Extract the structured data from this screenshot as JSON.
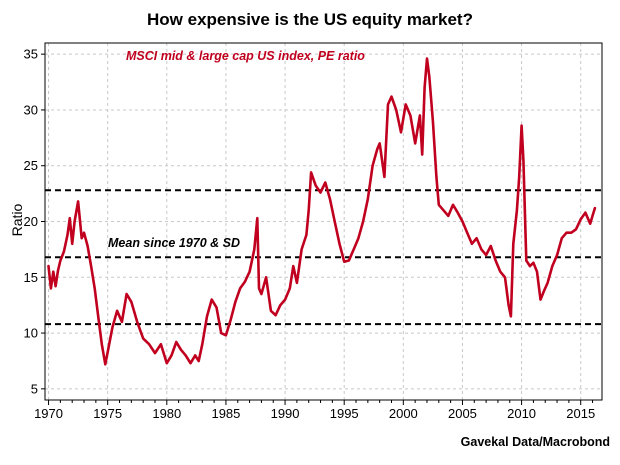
{
  "chart_data": {
    "type": "line",
    "title": "How expensive is the US equity market?",
    "ylabel": "Ratio",
    "xlabel": "",
    "xlim": [
      1969.7,
      2016.8
    ],
    "ylim": [
      4,
      36
    ],
    "xticks": [
      1970,
      1975,
      1980,
      1985,
      1990,
      1995,
      2000,
      2005,
      2010,
      2015
    ],
    "yticks": [
      5,
      10,
      15,
      20,
      25,
      30,
      35
    ],
    "grid": true,
    "series_label": "MSCI mid & large cap US index, PE ratio",
    "mean_label": "Mean since 1970 & SD",
    "source": "Gavekal Data/Macrobond",
    "colors": {
      "series": "#c0001e",
      "reference": "#000000",
      "grid": "#c8c8c8"
    },
    "reference_lines": [
      {
        "role": "mean",
        "y": 16.8
      },
      {
        "role": "mean_plus_sd",
        "y": 22.8
      },
      {
        "role": "mean_minus_sd",
        "y": 10.8
      }
    ],
    "series": [
      {
        "x": [
          1970.0,
          1970.2,
          1970.4,
          1970.6,
          1970.8,
          1971.0,
          1971.3,
          1971.6,
          1971.8,
          1972.0,
          1972.2,
          1972.5,
          1972.8,
          1973.0,
          1973.3,
          1973.6,
          1973.9,
          1974.2,
          1974.5,
          1974.8,
          1975.0,
          1975.4,
          1975.8,
          1976.2,
          1976.6,
          1977.0,
          1977.5,
          1978.0,
          1978.5,
          1979.0,
          1979.5,
          1980.0,
          1980.4,
          1980.8,
          1981.2,
          1981.6,
          1982.0,
          1982.4,
          1982.7,
          1983.0,
          1983.4,
          1983.8,
          1984.2,
          1984.6,
          1985.0,
          1985.4,
          1985.8,
          1986.2,
          1986.6,
          1987.0,
          1987.4,
          1987.65,
          1987.8,
          1988.0,
          1988.4,
          1988.8,
          1989.2,
          1989.6,
          1990.0,
          1990.4,
          1990.7,
          1991.0,
          1991.4,
          1991.8,
          1992.0,
          1992.2,
          1992.6,
          1993.0,
          1993.4,
          1993.8,
          1994.2,
          1994.6,
          1995.0,
          1995.4,
          1995.8,
          1996.2,
          1996.6,
          1997.0,
          1997.4,
          1997.8,
          1998.0,
          1998.4,
          1998.7,
          1999.0,
          1999.4,
          1999.8,
          2000.2,
          2000.6,
          2001.0,
          2001.4,
          2001.6,
          2001.8,
          2002.0,
          2002.2,
          2002.5,
          2002.8,
          2003.0,
          2003.4,
          2003.8,
          2004.2,
          2004.6,
          2005.0,
          2005.4,
          2005.8,
          2006.2,
          2006.6,
          2007.0,
          2007.4,
          2007.8,
          2008.2,
          2008.6,
          2008.9,
          2009.1,
          2009.3,
          2009.6,
          2009.8,
          2010.0,
          2010.15,
          2010.4,
          2010.7,
          2011.0,
          2011.3,
          2011.6,
          2011.9,
          2012.2,
          2012.6,
          2013.0,
          2013.4,
          2013.8,
          2014.2,
          2014.6,
          2015.0,
          2015.4,
          2015.8,
          2016.0,
          2016.2
        ],
        "y": [
          16.0,
          14.0,
          15.5,
          14.2,
          15.6,
          16.5,
          17.3,
          18.8,
          20.3,
          18.0,
          20.0,
          21.8,
          18.5,
          19.0,
          17.8,
          16.0,
          14.0,
          11.5,
          9.0,
          7.2,
          8.3,
          10.5,
          12.0,
          11.0,
          13.5,
          12.8,
          11.0,
          9.5,
          9.0,
          8.2,
          9.0,
          7.3,
          8.0,
          9.2,
          8.5,
          8.0,
          7.3,
          8.0,
          7.5,
          9.0,
          11.5,
          13.0,
          12.3,
          10.0,
          9.8,
          11.2,
          12.8,
          14.0,
          14.6,
          15.5,
          17.5,
          20.3,
          14.0,
          13.5,
          15.0,
          12.0,
          11.6,
          12.5,
          13.0,
          14.0,
          16.0,
          14.5,
          17.5,
          18.8,
          21.0,
          24.4,
          23.2,
          22.6,
          23.5,
          22.0,
          20.0,
          18.0,
          16.4,
          16.5,
          17.5,
          18.5,
          20.0,
          22.0,
          25.0,
          26.5,
          27.0,
          24.0,
          30.5,
          31.2,
          30.0,
          28.0,
          30.5,
          29.5,
          27.0,
          29.5,
          26.0,
          32.0,
          34.6,
          33.0,
          29.0,
          24.0,
          21.5,
          21.0,
          20.5,
          21.5,
          20.8,
          20.0,
          19.0,
          18.0,
          18.5,
          17.5,
          17.0,
          17.8,
          16.5,
          15.5,
          15.0,
          12.5,
          11.5,
          18.0,
          21.0,
          24.0,
          28.6,
          25.5,
          16.5,
          16.0,
          16.3,
          15.5,
          13.0,
          13.8,
          14.5,
          16.0,
          17.0,
          18.5,
          19.0,
          19.0,
          19.3,
          20.2,
          20.8,
          19.8,
          20.5,
          21.2
        ]
      }
    ]
  }
}
